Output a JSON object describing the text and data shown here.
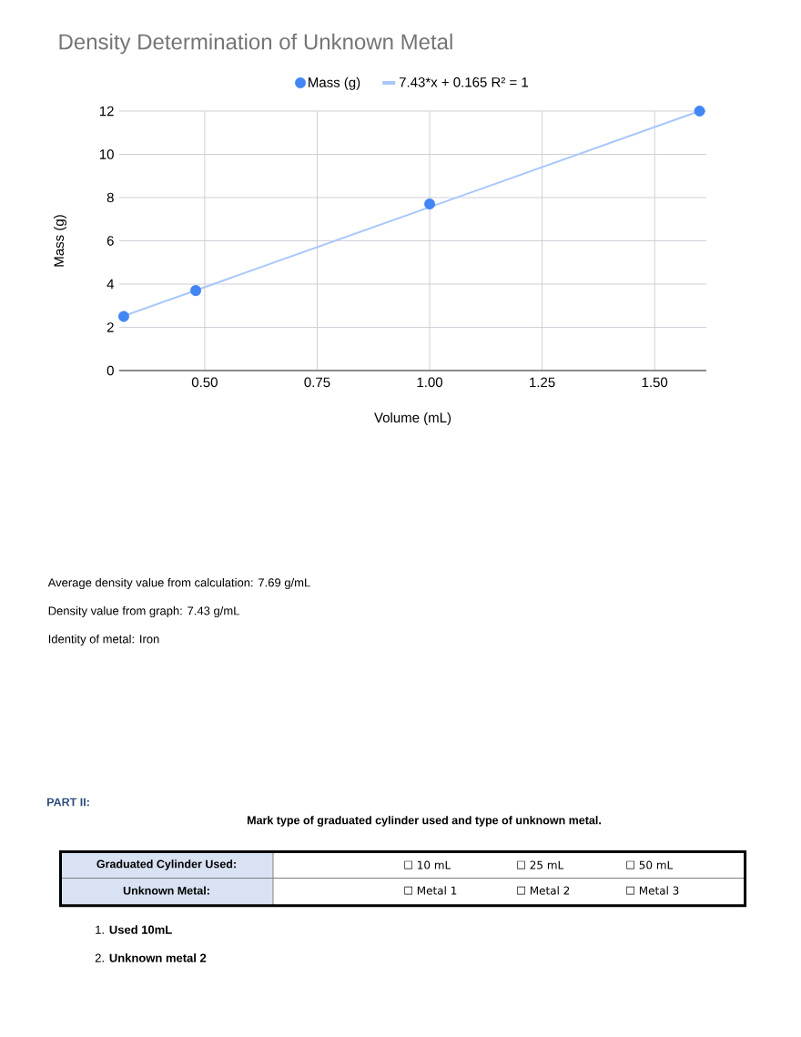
{
  "chart_data": {
    "type": "scatter",
    "title": "Density Determination of Unknown Metal",
    "xlabel": "Volume (mL)",
    "ylabel": "Mass (g)",
    "xlim": [
      0.31,
      1.615
    ],
    "ylim": [
      0,
      12
    ],
    "xticks": [
      {
        "value": 0.5,
        "label": "0.50"
      },
      0.75,
      {
        "value": 1.0,
        "label": "1.00"
      },
      1.25,
      {
        "value": 1.5,
        "label": "1.50"
      }
    ],
    "yticks": [
      0,
      2,
      4,
      6,
      8,
      10,
      12
    ],
    "grid": true,
    "legend": "top",
    "series": [
      {
        "name": "Mass (g)",
        "color": "#4285f4",
        "marker": "circle",
        "x": [
          0.32,
          0.48,
          1.0,
          1.6
        ],
        "values": [
          2.5,
          3.7,
          7.7,
          12.0
        ]
      },
      {
        "name": "7.43*x + 0.165 R² = 1",
        "type": "line",
        "color": "#a8c7fa",
        "marker": "none",
        "line_style": "solid",
        "x": [
          0.31,
          1.6
        ],
        "values": [
          2.45,
          12.0
        ]
      }
    ],
    "annotations": [
      "Average density value from calculation: 7.69 g/mL",
      "Density value from graph: 7.43 g/mL",
      "Identity of metal: Iron",
      "PART II:",
      "Mark type of graduated cylinder used and type of unknown metal.",
      "Graduated Cylinder Used:",
      "☐ 10 mL",
      "☐ 25 mL",
      "☐ 50 mL",
      "Unknown Metal:",
      "☐ Metal 1",
      "☐ Metal 2",
      "☐ Metal 3",
      "1. **Used 10mL**",
      "2. **Unknown metal 2**"
    ]
  }
}
